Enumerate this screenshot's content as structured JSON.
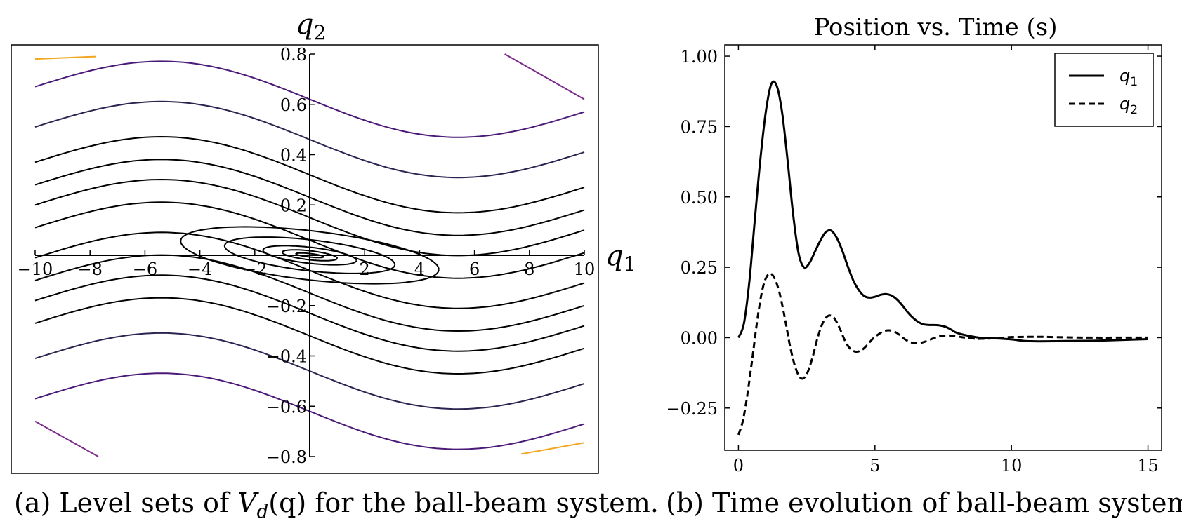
{
  "chart_data": [
    {
      "type": "contour",
      "title": "",
      "xlabel": "q1",
      "ylabel": "q2",
      "xlim": [
        -10,
        10
      ],
      "ylim": [
        -0.8,
        0.8
      ],
      "xticks": [
        "−10",
        "−8",
        "−6",
        "−4",
        "−2",
        "2",
        "4",
        "6",
        "8",
        "10"
      ],
      "xtick_values": [
        -10,
        -8,
        -6,
        -4,
        -2,
        2,
        4,
        6,
        8,
        10
      ],
      "yticks": [
        "−0.8",
        "−0.6",
        "−0.4",
        "−0.2",
        "0.2",
        "0.4",
        "0.6",
        "0.8"
      ],
      "ytick_values": [
        -0.8,
        -0.6,
        -0.4,
        -0.2,
        0.2,
        0.4,
        0.6,
        0.8
      ],
      "axes_through_origin": true,
      "minimum": [
        0,
        0
      ],
      "closed_levels": [
        {
          "rx": 0.5,
          "ry": 0.007
        },
        {
          "rx": 1.0,
          "ry": 0.018
        },
        {
          "rx": 1.7,
          "ry": 0.032
        },
        {
          "rx": 3.1,
          "ry": 0.062
        },
        {
          "rx": 4.7,
          "ry": 0.098
        }
      ],
      "open_levels": [
        0.06,
        0.15,
        0.23,
        0.32,
        0.46,
        0.62
      ],
      "corner_levels": [
        {
          "x": [
            -10,
            -7.8
          ],
          "y": [
            0.78,
            0.79
          ],
          "color": "#f0a81e"
        },
        {
          "x": [
            7.7,
            10
          ],
          "y": [
            -0.79,
            -0.745
          ],
          "color": "#f0a81e"
        },
        {
          "x": [
            -10,
            -7.7
          ],
          "y": [
            -0.66,
            -0.8
          ],
          "color": "#7b2a8c"
        },
        {
          "x": [
            7.1,
            10
          ],
          "y": [
            0.8,
            0.62
          ],
          "color": "#7b2a8c"
        }
      ],
      "colors": {
        "inner": "#000000",
        "mid": "#2b2450",
        "outer": "#4b1a78",
        "edge": "#7b2a8c",
        "corner": "#f0a81e"
      },
      "caption": "(a) Level sets of Vd(q) for the ball-beam system.",
      "caption_parts": {
        "prefix": "(a) Level sets of ",
        "V": "V",
        "sub": "d",
        "arg": "(q)",
        "suffix": " for the ball-beam system."
      }
    },
    {
      "type": "line",
      "title": "Position vs. Time (s)",
      "xlabel": "",
      "ylabel": "",
      "xlim": [
        -0.5,
        15.5
      ],
      "ylim": [
        -0.4,
        1.04
      ],
      "xticks": [
        "0",
        "5",
        "10",
        "15"
      ],
      "xtick_values": [
        0,
        5,
        10,
        15
      ],
      "yticks": [
        "−0.25",
        "0.00",
        "0.25",
        "0.50",
        "0.75",
        "1.00"
      ],
      "ytick_values": [
        -0.25,
        0,
        0.25,
        0.5,
        0.75,
        1.0
      ],
      "legend_position": "top-right",
      "grid": false,
      "series": [
        {
          "name": "q1",
          "name_parts": {
            "base": "q",
            "sub": "1"
          },
          "style": "solid",
          "color": "#000000",
          "x": [
            0,
            0.2,
            0.4,
            0.6,
            0.8,
            1.0,
            1.2,
            1.4,
            1.6,
            1.8,
            2.0,
            2.2,
            2.4,
            2.6,
            2.8,
            3.0,
            3.2,
            3.4,
            3.6,
            3.8,
            4.0,
            4.2,
            4.4,
            4.6,
            4.8,
            5.0,
            5.2,
            5.4,
            5.6,
            5.8,
            6.0,
            6.2,
            6.4,
            6.6,
            6.8,
            7.0,
            7.2,
            7.4,
            7.6,
            7.8,
            8.0,
            8.5,
            9.0,
            9.5,
            10.0,
            10.5,
            11.0,
            12.0,
            13.0,
            14.0,
            15.0
          ],
          "y": [
            0.0,
            0.05,
            0.2,
            0.42,
            0.63,
            0.8,
            0.9,
            0.895,
            0.8,
            0.63,
            0.44,
            0.3,
            0.25,
            0.265,
            0.305,
            0.345,
            0.375,
            0.38,
            0.355,
            0.31,
            0.255,
            0.205,
            0.17,
            0.148,
            0.142,
            0.145,
            0.152,
            0.155,
            0.15,
            0.136,
            0.115,
            0.09,
            0.07,
            0.055,
            0.047,
            0.045,
            0.045,
            0.043,
            0.038,
            0.028,
            0.017,
            0.005,
            -0.002,
            -0.003,
            -0.006,
            -0.012,
            -0.013,
            -0.012,
            -0.011,
            -0.008,
            -0.005
          ]
        },
        {
          "name": "q2",
          "name_parts": {
            "base": "q",
            "sub": "2"
          },
          "style": "dashed",
          "color": "#000000",
          "x": [
            0,
            0.15,
            0.3,
            0.5,
            0.7,
            0.9,
            1.1,
            1.3,
            1.5,
            1.7,
            1.9,
            2.1,
            2.3,
            2.5,
            2.7,
            2.9,
            3.1,
            3.3,
            3.5,
            3.7,
            3.9,
            4.1,
            4.3,
            4.5,
            4.7,
            4.9,
            5.1,
            5.3,
            5.5,
            5.7,
            5.9,
            6.1,
            6.3,
            6.5,
            6.7,
            6.9,
            7.1,
            7.3,
            7.5,
            7.7,
            7.9,
            8.1,
            8.3,
            8.5,
            8.7,
            8.9,
            9.2,
            9.6,
            10.0,
            11.0,
            12.0,
            13.0,
            14.0,
            15.0
          ],
          "y": [
            -0.345,
            -0.3,
            -0.22,
            -0.08,
            0.07,
            0.18,
            0.225,
            0.215,
            0.16,
            0.07,
            -0.035,
            -0.11,
            -0.145,
            -0.13,
            -0.075,
            0.0,
            0.055,
            0.078,
            0.07,
            0.035,
            -0.01,
            -0.04,
            -0.05,
            -0.045,
            -0.028,
            -0.006,
            0.01,
            0.022,
            0.026,
            0.022,
            0.01,
            -0.006,
            -0.016,
            -0.02,
            -0.018,
            -0.012,
            -0.004,
            0.003,
            0.007,
            0.008,
            0.006,
            0.003,
            0.0,
            -0.002,
            -0.004,
            -0.004,
            -0.003,
            -0.001,
            0.002,
            0.003,
            0.001,
            0.0,
            0.0,
            0.0
          ]
        }
      ],
      "caption": "(b) Time evolution of ball-beam system"
    }
  ]
}
